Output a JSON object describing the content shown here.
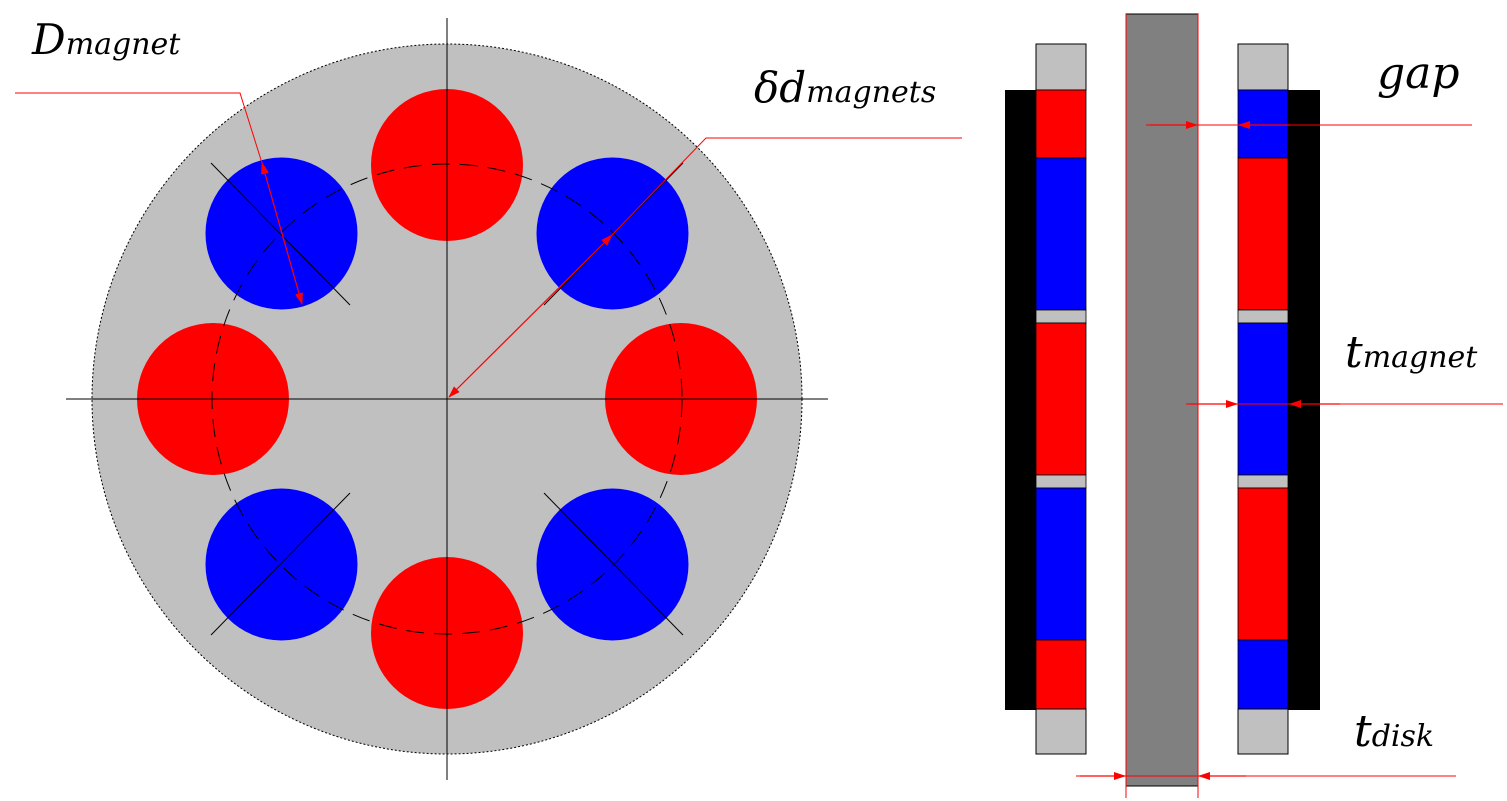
{
  "labels": {
    "d_magnet_main": "D",
    "d_magnet_sub": "magnet",
    "delta_d_main": "δd",
    "delta_d_sub": "magnets",
    "gap": "gap",
    "t_magnet_main": "t",
    "t_magnet_sub": "magnet",
    "t_disk_main": "t",
    "t_disk_sub": "disk"
  },
  "colors": {
    "background": "#ffffff",
    "disk_face": "#c0c0c0",
    "magnet_north": "#ff0000",
    "magnet_south": "#0000ff",
    "center_disk": "#808080",
    "back_iron": "#000000",
    "spacer": "#c0c0c0",
    "dimension_line": "#ff0000",
    "construction_line": "#000000"
  },
  "front_view": {
    "magnet_count": 8,
    "magnets": [
      {
        "polarity": "north"
      },
      {
        "polarity": "south"
      },
      {
        "polarity": "north"
      },
      {
        "polarity": "south"
      },
      {
        "polarity": "north"
      },
      {
        "polarity": "south"
      },
      {
        "polarity": "north"
      },
      {
        "polarity": "south"
      }
    ]
  },
  "side_view": {
    "left_rotor_segments": [
      "north",
      "south",
      "north",
      "south",
      "north"
    ],
    "right_rotor_segments": [
      "south",
      "north",
      "south",
      "north",
      "south"
    ]
  }
}
